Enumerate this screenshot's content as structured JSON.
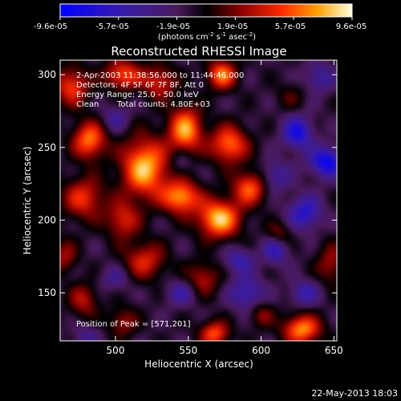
{
  "chart_data": {
    "type": "heatmap",
    "title": "Reconstructed RHESSI Image",
    "xlabel": "Heliocentric X (arcsec)",
    "ylabel": "Heliocentric Y (arcsec)",
    "xlim": [
      462,
      652
    ],
    "ylim": [
      117,
      310
    ],
    "xticks": [
      500,
      550,
      600,
      650
    ],
    "yticks": [
      150,
      200,
      250,
      300
    ],
    "colorbar": {
      "min": -9.6e-05,
      "max": 9.6e-05,
      "ticks": [
        "-9.6e-05",
        "-5.7e-05",
        "-1.9e-05",
        "1.9e-05",
        "5.7e-05",
        "9.6e-05"
      ],
      "unit_main": "(photons cm",
      "unit_sup1": "-2",
      "unit_mid": " s",
      "unit_sup2": "-1",
      "unit_end": " asec",
      "unit_sup3": "-2",
      "unit_close": ")"
    },
    "annotations": {
      "time_range": "2-Apr-2003 11:38:56.000 to 11:44:46.000",
      "detectors": "Detectors: 4F 5F 6F 7F 8F, Att 0",
      "energy": "Energy Range: 25.0 - 50.0 keV",
      "clean_label": "Clean",
      "total_counts": "Total counts: 4.80E+03",
      "peak": "Position of Peak = [571,201]"
    },
    "peak_position": [
      571,
      201
    ],
    "footer_date": "22-May-2013 18:03",
    "sources": [
      {
        "x": 571,
        "y": 201,
        "sx": 10,
        "sy": 9,
        "a": 1.0
      },
      {
        "x": 520,
        "y": 236,
        "sx": 11,
        "sy": 14,
        "a": 0.98
      },
      {
        "x": 548,
        "y": 262,
        "sx": 8,
        "sy": 11,
        "a": 0.9
      },
      {
        "x": 578,
        "y": 252,
        "sx": 9,
        "sy": 9,
        "a": 0.78
      },
      {
        "x": 592,
        "y": 222,
        "sx": 8,
        "sy": 8,
        "a": 0.72
      },
      {
        "x": 545,
        "y": 216,
        "sx": 9,
        "sy": 8,
        "a": 0.88
      },
      {
        "x": 482,
        "y": 255,
        "sx": 8,
        "sy": 9,
        "a": 0.8
      },
      {
        "x": 470,
        "y": 292,
        "sx": 8,
        "sy": 9,
        "a": 0.65
      },
      {
        "x": 505,
        "y": 300,
        "sx": 9,
        "sy": 7,
        "a": 0.7
      },
      {
        "x": 530,
        "y": 295,
        "sx": 8,
        "sy": 8,
        "a": 0.55
      },
      {
        "x": 573,
        "y": 300,
        "sx": 7,
        "sy": 7,
        "a": 0.8
      },
      {
        "x": 478,
        "y": 215,
        "sx": 10,
        "sy": 10,
        "a": 0.6
      },
      {
        "x": 505,
        "y": 200,
        "sx": 8,
        "sy": 9,
        "a": 0.55
      },
      {
        "x": 520,
        "y": 172,
        "sx": 10,
        "sy": 9,
        "a": 0.55
      },
      {
        "x": 560,
        "y": 160,
        "sx": 8,
        "sy": 8,
        "a": 0.45
      },
      {
        "x": 612,
        "y": 190,
        "sx": 6,
        "sy": 6,
        "a": 0.4
      },
      {
        "x": 568,
        "y": 122,
        "sx": 7,
        "sy": 6,
        "a": 0.7
      },
      {
        "x": 628,
        "y": 125,
        "sx": 9,
        "sy": 7,
        "a": 0.85
      },
      {
        "x": 600,
        "y": 135,
        "sx": 6,
        "sy": 6,
        "a": 0.35
      },
      {
        "x": 478,
        "y": 145,
        "sx": 7,
        "sy": 8,
        "a": 0.45
      },
      {
        "x": 505,
        "y": 130,
        "sx": 7,
        "sy": 7,
        "a": 0.4
      },
      {
        "x": 648,
        "y": 170,
        "sx": 7,
        "sy": 10,
        "a": 0.4
      },
      {
        "x": 465,
        "y": 175,
        "sx": 6,
        "sy": 8,
        "a": 0.4
      },
      {
        "x": 625,
        "y": 260,
        "sx": 7,
        "sy": 8,
        "a": -0.7
      },
      {
        "x": 645,
        "y": 240,
        "sx": 8,
        "sy": 7,
        "a": -0.8
      },
      {
        "x": 610,
        "y": 230,
        "sx": 7,
        "sy": 7,
        "a": -0.4
      },
      {
        "x": 630,
        "y": 205,
        "sx": 8,
        "sy": 8,
        "a": -0.6
      },
      {
        "x": 610,
        "y": 180,
        "sx": 6,
        "sy": 7,
        "a": -0.55
      },
      {
        "x": 585,
        "y": 172,
        "sx": 7,
        "sy": 6,
        "a": -0.45
      },
      {
        "x": 590,
        "y": 150,
        "sx": 8,
        "sy": 8,
        "a": -0.5
      },
      {
        "x": 630,
        "y": 150,
        "sx": 7,
        "sy": 6,
        "a": -0.45
      },
      {
        "x": 545,
        "y": 150,
        "sx": 7,
        "sy": 6,
        "a": -0.4
      },
      {
        "x": 500,
        "y": 160,
        "sx": 7,
        "sy": 6,
        "a": -0.3
      },
      {
        "x": 480,
        "y": 120,
        "sx": 6,
        "sy": 5,
        "a": -0.3
      },
      {
        "x": 640,
        "y": 298,
        "sx": 7,
        "sy": 7,
        "a": -0.4
      },
      {
        "x": 500,
        "y": 270,
        "sx": 6,
        "sy": 6,
        "a": -0.35
      },
      {
        "x": 545,
        "y": 240,
        "sx": 5,
        "sy": 6,
        "a": -0.25
      },
      {
        "x": 620,
        "y": 285,
        "sx": 7,
        "sy": 7,
        "a": 0.2
      }
    ]
  }
}
